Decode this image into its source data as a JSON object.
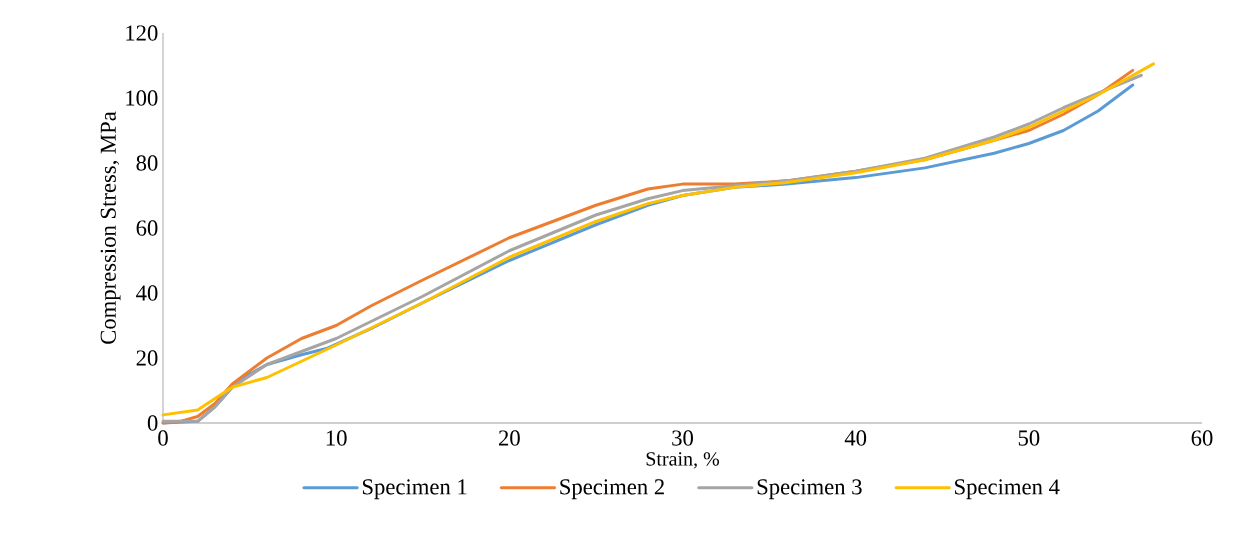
{
  "chart_data": {
    "type": "line",
    "xlabel": "Strain, %",
    "ylabel": "Compression Stress, MPa",
    "xlim": [
      0,
      60
    ],
    "xticks": [
      0,
      10,
      20,
      30,
      40,
      50,
      60
    ],
    "ylim": [
      0,
      120
    ],
    "yticks": [
      0,
      20,
      40,
      60,
      80,
      100,
      120
    ],
    "grid": false,
    "legend": "bottom",
    "marker": "none",
    "line_style": "solid",
    "series": [
      {
        "name": "Specimen 1",
        "color": "#5b9bd5",
        "x": [
          0,
          2,
          3,
          4,
          5,
          6,
          8,
          9.5,
          12,
          15,
          20,
          25,
          28,
          30,
          33,
          36,
          40,
          44,
          48,
          50,
          52,
          54,
          56
        ],
        "values": [
          0,
          0.5,
          5,
          11,
          15,
          18,
          21,
          23,
          29,
          37,
          50,
          61,
          67,
          70,
          72.5,
          73.5,
          75.5,
          78.5,
          83,
          86,
          90,
          96,
          104
        ]
      },
      {
        "name": "Specimen 2",
        "color": "#ed7d31",
        "x": [
          0,
          1,
          2,
          3,
          4,
          6,
          8,
          10,
          12,
          15,
          20,
          25,
          28,
          30,
          33,
          36,
          40,
          44,
          48,
          50,
          52,
          54,
          56
        ],
        "values": [
          0,
          0.5,
          2,
          6,
          12,
          20,
          26,
          30,
          36,
          44,
          57,
          67,
          72,
          73.5,
          73.5,
          74.5,
          77.5,
          81,
          87,
          90,
          95,
          101,
          108.5
        ]
      },
      {
        "name": "Specimen 3",
        "color": "#a5a5a5",
        "x": [
          0,
          2,
          3,
          4,
          6,
          8,
          10,
          15,
          20,
          25,
          28,
          30,
          33,
          36,
          40,
          44,
          48,
          50,
          52,
          54,
          56.5
        ],
        "values": [
          0.5,
          0.5,
          5,
          11,
          18,
          22,
          26,
          39,
          53,
          64,
          69,
          71.5,
          73,
          74.5,
          77.5,
          81.5,
          88,
          92,
          97,
          101.5,
          107
        ]
      },
      {
        "name": "Specimen 4",
        "color": "#ffc000",
        "x": [
          0,
          2,
          3,
          4,
          6,
          8,
          10,
          15,
          20,
          25,
          28,
          30,
          33,
          36,
          40,
          44,
          48,
          50,
          52,
          54,
          57.2
        ],
        "values": [
          2.5,
          4,
          7.5,
          11,
          14,
          19,
          24,
          37,
          51,
          62,
          67.5,
          70,
          72.5,
          74,
          77,
          81,
          87,
          91,
          96,
          101,
          110.5
        ]
      }
    ]
  }
}
